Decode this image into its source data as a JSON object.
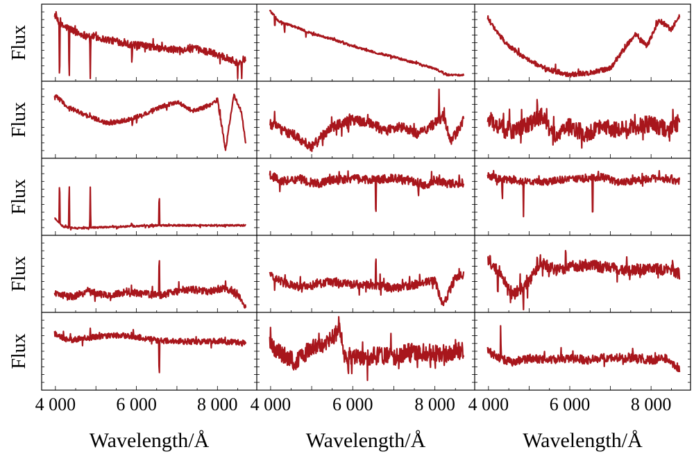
{
  "figure": {
    "ylabel": "Flux",
    "xlabel": "Wavelength/Å"
  },
  "chart_data": {
    "type": "line",
    "layout": "5 rows x 3 columns grid of spectra panels",
    "line_color": "#a8161c",
    "frame_color": "#000000",
    "xlim": [
      3900,
      8800
    ],
    "xticks": [
      4000,
      6000,
      8000
    ],
    "xtick_labels_col1": [
      "4 000",
      "6 000",
      "8 000"
    ],
    "xtick_labels_col2": [
      "4 000",
      "6 000",
      "8 000"
    ],
    "xtick_labels_col3": [
      "4 000",
      "6 000",
      "8 000"
    ],
    "ylabel": "Flux",
    "xlabel": "Wavelength/Å",
    "yticks_labeled": false,
    "panels": [
      {
        "row": 0,
        "col": 0,
        "x": [
          3980,
          4100,
          4340,
          4600,
          4861,
          5200,
          5500,
          5900,
          6300,
          6563,
          7000,
          7400,
          7800,
          8200,
          8500,
          8700
        ],
        "y": [
          0.9,
          0.75,
          0.7,
          0.62,
          0.6,
          0.55,
          0.52,
          0.47,
          0.45,
          0.42,
          0.4,
          0.42,
          0.37,
          0.3,
          0.22,
          0.28
        ],
        "noise": 0.05,
        "dips": [
          [
            4102,
            0.95
          ],
          [
            4340,
            0.9
          ],
          [
            4861,
            0.85
          ],
          [
            5890,
            0.3
          ],
          [
            8500,
            0.3
          ],
          [
            8600,
            0.3
          ]
        ],
        "spikes": []
      },
      {
        "row": 0,
        "col": 1,
        "x": [
          3980,
          4200,
          4600,
          5000,
          5500,
          6000,
          6500,
          7000,
          7500,
          8000,
          8300,
          8700
        ],
        "y": [
          0.95,
          0.8,
          0.72,
          0.63,
          0.55,
          0.45,
          0.37,
          0.3,
          0.22,
          0.14,
          0.05,
          0.05
        ],
        "noise": 0.015,
        "dips": [
          [
            4102,
            0.2
          ],
          [
            4340,
            0.18
          ],
          [
            4861,
            0.1
          ]
        ],
        "spikes": []
      },
      {
        "row": 0,
        "col": 2,
        "x": [
          3980,
          4200,
          4500,
          5000,
          5500,
          6000,
          6500,
          7000,
          7300,
          7600,
          7900,
          8200,
          8500,
          8700
        ],
        "y": [
          0.85,
          0.65,
          0.45,
          0.25,
          0.12,
          0.05,
          0.08,
          0.14,
          0.38,
          0.62,
          0.45,
          0.82,
          0.68,
          0.88
        ],
        "noise": 0.035,
        "dips": [],
        "spikes": []
      },
      {
        "row": 1,
        "col": 0,
        "x": [
          3980,
          4300,
          4800,
          5300,
          5800,
          6200,
          6600,
          7000,
          7400,
          7800,
          8000,
          8200,
          8400,
          8600,
          8700
        ],
        "y": [
          0.85,
          0.68,
          0.55,
          0.45,
          0.5,
          0.58,
          0.68,
          0.75,
          0.62,
          0.7,
          0.78,
          0.08,
          0.85,
          0.6,
          0.15
        ],
        "noise": 0.03,
        "dips": [
          [
            5900,
            0.15
          ]
        ],
        "spikes": []
      },
      {
        "row": 1,
        "col": 1,
        "x": [
          3980,
          4300,
          4600,
          5000,
          5300,
          5600,
          6000,
          6400,
          6800,
          7200,
          7600,
          8000,
          8200,
          8400,
          8700
        ],
        "y": [
          0.45,
          0.35,
          0.28,
          0.12,
          0.3,
          0.42,
          0.5,
          0.45,
          0.35,
          0.4,
          0.3,
          0.45,
          0.55,
          0.2,
          0.5
        ],
        "noise": 0.07,
        "dips": [
          [
            5890,
            0.25
          ]
        ],
        "spikes": [
          [
            8100,
            0.45
          ]
        ]
      },
      {
        "row": 1,
        "col": 2,
        "x": [
          3980,
          4300,
          4600,
          5000,
          5300,
          5600,
          6000,
          6400,
          6800,
          7200,
          7600,
          8000,
          8400,
          8700
        ],
        "y": [
          0.5,
          0.4,
          0.35,
          0.45,
          0.55,
          0.3,
          0.4,
          0.3,
          0.4,
          0.35,
          0.4,
          0.45,
          0.35,
          0.48
        ],
        "noise": 0.12,
        "dips": [
          [
            4800,
            0.3
          ]
        ],
        "spikes": [
          [
            5200,
            0.4
          ]
        ]
      },
      {
        "row": 2,
        "col": 0,
        "x": [
          3980,
          4200,
          4600,
          5000,
          5500,
          6000,
          6500,
          7000,
          7500,
          8000,
          8500,
          8700
        ],
        "y": [
          0.2,
          0.08,
          0.06,
          0.07,
          0.08,
          0.09,
          0.1,
          0.1,
          0.1,
          0.1,
          0.1,
          0.1
        ],
        "noise": 0.012,
        "dips": [],
        "spikes": [
          [
            4102,
            0.75
          ],
          [
            4340,
            0.75
          ],
          [
            4861,
            0.6
          ],
          [
            5876,
            0.05
          ],
          [
            6563,
            0.55
          ]
        ]
      },
      {
        "row": 2,
        "col": 1,
        "x": [
          3980,
          4300,
          4700,
          5100,
          5500,
          6000,
          6500,
          7000,
          7500,
          7800,
          8000,
          8300,
          8700
        ],
        "y": [
          0.8,
          0.72,
          0.75,
          0.68,
          0.73,
          0.75,
          0.74,
          0.76,
          0.72,
          0.65,
          0.74,
          0.68,
          0.7
        ],
        "noise": 0.06,
        "dips": [
          [
            4227,
            0.2
          ],
          [
            6563,
            0.7
          ],
          [
            7600,
            0.2
          ]
        ],
        "spikes": []
      },
      {
        "row": 2,
        "col": 2,
        "x": [
          3980,
          4300,
          4800,
          5300,
          5800,
          6300,
          6800,
          7200,
          7600,
          8000,
          8400,
          8700
        ],
        "y": [
          0.8,
          0.75,
          0.72,
          0.7,
          0.74,
          0.75,
          0.78,
          0.7,
          0.72,
          0.76,
          0.74,
          0.72
        ],
        "noise": 0.05,
        "dips": [
          [
            4340,
            0.4
          ],
          [
            4861,
            0.5
          ],
          [
            6563,
            0.75
          ]
        ],
        "spikes": [
          [
            8200,
            0.12
          ],
          [
            8500,
            0.1
          ]
        ]
      },
      {
        "row": 3,
        "col": 0,
        "x": [
          3980,
          4400,
          4800,
          5300,
          5800,
          6200,
          6563,
          7000,
          7400,
          7800,
          8200,
          8500,
          8700
        ],
        "y": [
          0.22,
          0.18,
          0.25,
          0.2,
          0.25,
          0.22,
          0.2,
          0.25,
          0.28,
          0.25,
          0.3,
          0.2,
          0.05
        ],
        "noise": 0.05,
        "dips": [],
        "spikes": [
          [
            6563,
            0.75
          ],
          [
            8200,
            0.15
          ]
        ]
      },
      {
        "row": 3,
        "col": 1,
        "x": [
          3980,
          4300,
          4700,
          5100,
          5500,
          6000,
          6500,
          7000,
          7500,
          8000,
          8200,
          8500,
          8700
        ],
        "y": [
          0.5,
          0.38,
          0.32,
          0.35,
          0.4,
          0.35,
          0.35,
          0.3,
          0.35,
          0.4,
          0.05,
          0.45,
          0.48
        ],
        "noise": 0.06,
        "dips": [
          [
            4100,
            0.2
          ]
        ],
        "spikes": [
          [
            6563,
            0.55
          ]
        ]
      },
      {
        "row": 3,
        "col": 2,
        "x": [
          3980,
          4300,
          4600,
          5000,
          5300,
          5700,
          6000,
          6500,
          7000,
          7500,
          8000,
          8500,
          8700
        ],
        "y": [
          0.7,
          0.5,
          0.2,
          0.4,
          0.65,
          0.55,
          0.6,
          0.62,
          0.58,
          0.55,
          0.58,
          0.55,
          0.5
        ],
        "noise": 0.08,
        "dips": [
          [
            4227,
            0.4
          ],
          [
            4861,
            0.4
          ]
        ],
        "spikes": [
          [
            5900,
            0.3
          ],
          [
            5200,
            0.2
          ]
        ]
      },
      {
        "row": 4,
        "col": 0,
        "x": [
          3980,
          4300,
          4700,
          5100,
          5500,
          6000,
          6500,
          7000,
          7500,
          8000,
          8500,
          8700
        ],
        "y": [
          0.75,
          0.65,
          0.68,
          0.7,
          0.72,
          0.7,
          0.65,
          0.64,
          0.63,
          0.64,
          0.62,
          0.62
        ],
        "noise": 0.04,
        "dips": [
          [
            6563,
            0.65
          ]
        ],
        "spikes": [
          [
            4200,
            0.15
          ],
          [
            4861,
            0.1
          ]
        ]
      },
      {
        "row": 4,
        "col": 1,
        "x": [
          3980,
          4300,
          4600,
          5000,
          5300,
          5700,
          5800,
          6200,
          6600,
          7000,
          7400,
          7800,
          8200,
          8700
        ],
        "y": [
          0.6,
          0.45,
          0.35,
          0.55,
          0.6,
          0.8,
          0.45,
          0.4,
          0.45,
          0.42,
          0.5,
          0.48,
          0.45,
          0.52
        ],
        "noise": 0.12,
        "dips": [
          [
            5890,
            0.35
          ]
        ],
        "spikes": [
          [
            4000,
            0.25
          ]
        ]
      },
      {
        "row": 4,
        "col": 2,
        "x": [
          3980,
          4300,
          4600,
          5000,
          5500,
          6000,
          6500,
          7000,
          7500,
          8000,
          8400,
          8700
        ],
        "y": [
          0.5,
          0.4,
          0.35,
          0.4,
          0.38,
          0.4,
          0.38,
          0.42,
          0.4,
          0.38,
          0.4,
          0.25
        ],
        "noise": 0.06,
        "dips": [],
        "spikes": [
          [
            4300,
            0.45
          ],
          [
            7550,
            0.2
          ]
        ]
      }
    ]
  }
}
